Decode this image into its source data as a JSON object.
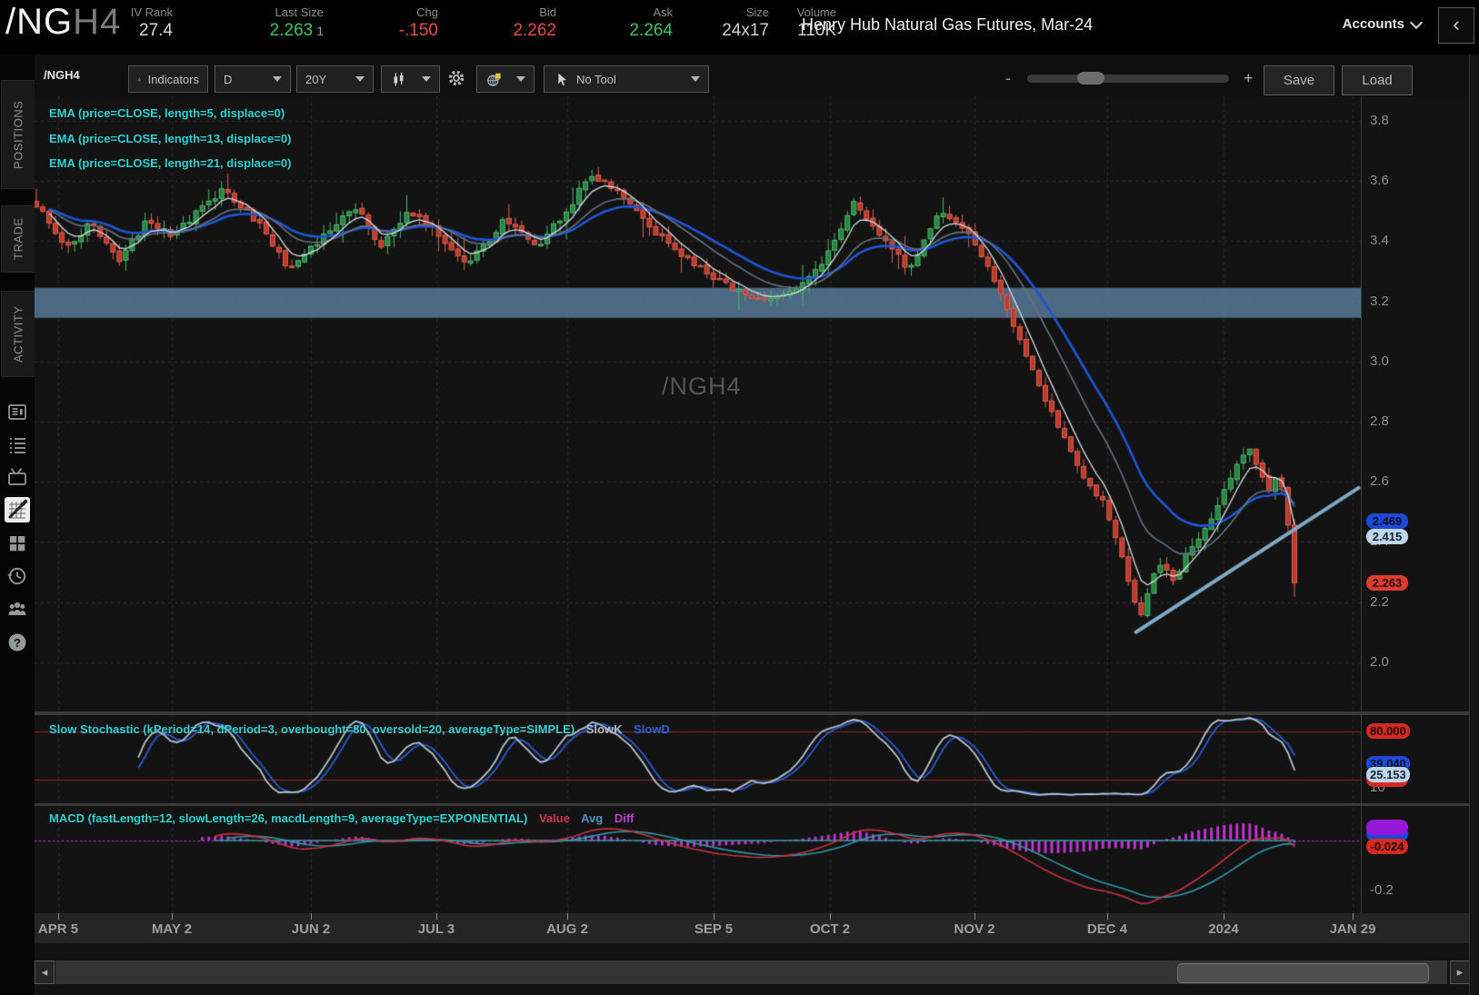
{
  "header": {
    "symbol": {
      "root": "/NG",
      "suffix": "H4"
    },
    "stats": [
      {
        "label": "IV Rank",
        "value": "27.4",
        "color": "#d8d8d8"
      },
      {
        "label": "Last Size",
        "value": "2.263",
        "extra": "1",
        "color": "#3cc366"
      },
      {
        "label": "Chg",
        "value": "-.150",
        "color": "#e24c4c"
      },
      {
        "label": "Bid",
        "value": "2.262",
        "color": "#e24c4c"
      },
      {
        "label": "Ask",
        "value": "2.264",
        "color": "#3cc366"
      },
      {
        "label": "Size",
        "value": "24x17",
        "color": "#cfcfcf"
      },
      {
        "label": "Volume",
        "value": "110K",
        "color": "#cfcfcf"
      }
    ],
    "contract_title": "Henry Hub Natural Gas Futures, Mar-24",
    "accounts_label": "Accounts",
    "collapse_glyph": "‹"
  },
  "sidebar": {
    "tabs": [
      {
        "label": "POSITIONS"
      },
      {
        "label": "TRADE"
      },
      {
        "label": "ACTIVITY"
      }
    ],
    "icons": [
      "news-ledger",
      "watchlist",
      "tv",
      "charts",
      "grid",
      "history",
      "community",
      "help"
    ]
  },
  "toolbar": {
    "symbol_input": "/NGH4",
    "indicators_label": "Indicators",
    "aggregation": "D",
    "range": "20Y",
    "tool_label": "No Tool",
    "zoom_minus": "-",
    "zoom_plus": "+",
    "save_label": "Save",
    "load_label": "Load"
  },
  "scrollbar": {
    "left_glyph": "◂",
    "right_glyph": "▸"
  },
  "chart": {
    "ema_labels": [
      "EMA (price=CLOSE, length=5, displace=0)",
      "EMA (price=CLOSE, length=13, displace=0)",
      "EMA (price=CLOSE, length=21, displace=0)"
    ],
    "ema_label_color": "#2fd0d0",
    "stoch": {
      "label": "Slow Stochastic (kPeriod=14, dPeriod=3, overbought=80, oversold=20, averageType=SIMPLE)",
      "label_color": "#2fd0d0",
      "series": [
        {
          "name": "SlowK",
          "color": "#a9bccc"
        },
        {
          "name": "SlowD",
          "color": "#2f62d8"
        }
      ]
    },
    "macd": {
      "label": "MACD (fastLength=12, slowLength=26, macdLength=9, averageType=EXPONENTIAL)",
      "label_color": "#2fd0d0",
      "series": [
        {
          "name": "Value",
          "color": "#d2374a"
        },
        {
          "name": "Avg",
          "color": "#4e94c4"
        },
        {
          "name": "Diff",
          "color": "#bf3ed2"
        }
      ]
    },
    "watermark": "/NGH4"
  },
  "chart_data": {
    "type": "candlestick",
    "symbol": "/NGH4",
    "description": "Henry Hub Natural Gas Futures, Mar-24",
    "aggregation": "D",
    "range": "20Y",
    "last_close": 2.263,
    "ylim": [
      1.95,
      3.88
    ],
    "y_ticks": [
      3.8,
      3.6,
      3.4,
      3.2,
      3.0,
      2.8,
      2.6,
      2.4,
      2.2,
      2.0
    ],
    "x_ticks": [
      {
        "label": "APR 5",
        "f": 0.017
      },
      {
        "label": "MAY 2",
        "f": 0.108
      },
      {
        "label": "JUN 2",
        "f": 0.218
      },
      {
        "label": "JUL 3",
        "f": 0.318
      },
      {
        "label": "AUG 2",
        "f": 0.422
      },
      {
        "label": "SEP 5",
        "f": 0.538
      },
      {
        "label": "OCT 2",
        "f": 0.631
      },
      {
        "label": "NOV 2",
        "f": 0.746
      },
      {
        "label": "DEC 4",
        "f": 0.851
      },
      {
        "label": "2024",
        "f": 0.944
      },
      {
        "label": "JAN 29",
        "f": 1.046
      }
    ],
    "candle_count": 198,
    "close_anchors": [
      [
        0.0,
        3.52
      ],
      [
        0.025,
        3.38
      ],
      [
        0.043,
        3.46
      ],
      [
        0.065,
        3.33
      ],
      [
        0.087,
        3.46
      ],
      [
        0.108,
        3.42
      ],
      [
        0.148,
        3.57
      ],
      [
        0.177,
        3.46
      ],
      [
        0.202,
        3.3
      ],
      [
        0.231,
        3.43
      ],
      [
        0.253,
        3.52
      ],
      [
        0.274,
        3.38
      ],
      [
        0.296,
        3.5
      ],
      [
        0.317,
        3.43
      ],
      [
        0.343,
        3.32
      ],
      [
        0.372,
        3.47
      ],
      [
        0.397,
        3.38
      ],
      [
        0.422,
        3.5
      ],
      [
        0.44,
        3.63
      ],
      [
        0.462,
        3.56
      ],
      [
        0.483,
        3.47
      ],
      [
        0.509,
        3.36
      ],
      [
        0.538,
        3.28
      ],
      [
        0.57,
        3.2
      ],
      [
        0.599,
        3.23
      ],
      [
        0.624,
        3.31
      ],
      [
        0.649,
        3.53
      ],
      [
        0.671,
        3.42
      ],
      [
        0.693,
        3.31
      ],
      [
        0.718,
        3.49
      ],
      [
        0.74,
        3.43
      ],
      [
        0.758,
        3.3
      ],
      [
        0.772,
        3.17
      ],
      [
        0.794,
        2.95
      ],
      [
        0.812,
        2.79
      ],
      [
        0.83,
        2.62
      ],
      [
        0.848,
        2.54
      ],
      [
        0.866,
        2.3
      ],
      [
        0.877,
        2.14
      ],
      [
        0.891,
        2.33
      ],
      [
        0.905,
        2.27
      ],
      [
        0.916,
        2.37
      ],
      [
        0.931,
        2.46
      ],
      [
        0.949,
        2.61
      ],
      [
        0.963,
        2.73
      ],
      [
        0.978,
        2.57
      ],
      [
        0.988,
        2.63
      ],
      [
        0.994,
        2.5
      ],
      [
        1.0,
        2.263
      ]
    ],
    "support_band": {
      "top": 3.245,
      "bottom": 3.145
    },
    "trendline": {
      "f1": 0.874,
      "p1": 2.1,
      "f2": 1.051,
      "p2": 2.58
    },
    "overlays": [
      {
        "type": "EMA",
        "length": 5
      },
      {
        "type": "EMA",
        "length": 13
      },
      {
        "type": "EMA",
        "length": 21
      }
    ],
    "lower_studies": [
      {
        "type": "SlowStochastic",
        "kPeriod": 14,
        "dPeriod": 3,
        "overbought": 80,
        "oversold": 20,
        "averageType": "SIMPLE"
      },
      {
        "type": "MACD",
        "fastLength": 12,
        "slowLength": 26,
        "macdLength": 9,
        "averageType": "EXPONENTIAL"
      }
    ],
    "price_bubbles": [
      {
        "text": "2.469",
        "value": 2.469,
        "bg": "#1d49d8",
        "fg": "#0d1220"
      },
      {
        "text": "2.415",
        "value": 2.415,
        "bg": "#bdd6ec",
        "fg": "#18222e"
      },
      {
        "text": "2.263",
        "value": 2.263,
        "bg": "#e23b2e",
        "fg": "#1d0a08"
      }
    ],
    "stoch_ticks": [
      {
        "label": "80",
        "value": 80
      },
      {
        "label": "10",
        "value": 10
      }
    ],
    "stoch_bubbles": [
      {
        "text": "80.000",
        "value": 80,
        "bg": "#d42a22",
        "fg": "#1d0a08"
      },
      {
        "text": "",
        "value": 20,
        "bg": "#d42a22",
        "fg": "#1d0a08"
      },
      {
        "text": "39.040",
        "value": 39.04,
        "bg": "#1d49d8",
        "fg": "#0d1220"
      },
      {
        "text": "25.153",
        "value": 25.153,
        "bg": "#bdd6ec",
        "fg": "#18222e"
      }
    ],
    "macd_ticks": [
      {
        "label": "-0.2",
        "value": -0.2
      }
    ],
    "macd_bubbles": [
      {
        "text": "",
        "value": 0.026,
        "bg": "#1d49d8",
        "fg": "#0d1220"
      },
      {
        "text": "",
        "value": 0.052,
        "bg": "#9318d8",
        "fg": "#1d0a08"
      },
      {
        "text": "-0.024",
        "value": -0.024,
        "bg": "#d42a22",
        "fg": "#1d0a08"
      }
    ],
    "colors": {
      "up_border": "#4fb86d",
      "up_fill": "#27863f",
      "down_border": "#e0604e",
      "down_fill": "#bf3a2c",
      "ema5": "#d7dde2",
      "ema13": "#64727f",
      "ema21": "#1e56d6",
      "band": "#567997",
      "trendline": "#7fa9c9",
      "grid": "#2c2c2c",
      "stoch_k": "#b4c4d2",
      "stoch_d": "#2a5ad0",
      "stoch_level": "#93281f",
      "macd_value": "#c63243",
      "macd_avg": "#2f99a5",
      "macd_diff": "#b936cc",
      "watermark": "#565656"
    }
  }
}
